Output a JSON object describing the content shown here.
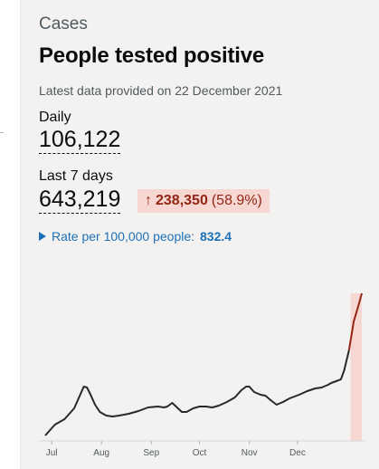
{
  "card": {
    "category": "Cases",
    "title": "People tested positive",
    "latest_data": "Latest data provided on 22 December 2021"
  },
  "daily": {
    "label": "Daily",
    "value": "106,122"
  },
  "last7": {
    "label": "Last 7 days",
    "value": "643,219",
    "change_arrow": "↑",
    "change_value": "238,350",
    "change_percent": "(58.9%)"
  },
  "rate": {
    "label": "Rate per 100,000 people:",
    "value": "832.4"
  },
  "colors": {
    "line": "#272828",
    "line_recent": "#942514",
    "recent_fill": "#f6d7d2",
    "link": "#1d70b8"
  },
  "chart_data": {
    "type": "line",
    "x_ticks": [
      "Jul",
      "Aug",
      "Sep",
      "Oct",
      "Nov",
      "Dec"
    ],
    "series": [
      {
        "values": [
          [
            0,
            6
          ],
          [
            6,
            18
          ],
          [
            12,
            24
          ],
          [
            18,
            36
          ],
          [
            22,
            52
          ],
          [
            24,
            60
          ],
          [
            26,
            59
          ],
          [
            28,
            52
          ],
          [
            31,
            40
          ],
          [
            34,
            32
          ],
          [
            38,
            28
          ],
          [
            42,
            27
          ],
          [
            46,
            28
          ],
          [
            52,
            30
          ],
          [
            58,
            33
          ],
          [
            64,
            37
          ],
          [
            70,
            38
          ],
          [
            74,
            37
          ],
          [
            76,
            38
          ],
          [
            79,
            42
          ],
          [
            82,
            37
          ],
          [
            85,
            32
          ],
          [
            88,
            32
          ],
          [
            92,
            36
          ],
          [
            96,
            38
          ],
          [
            100,
            38
          ],
          [
            104,
            37
          ],
          [
            108,
            39
          ],
          [
            113,
            43
          ],
          [
            118,
            48
          ],
          [
            122,
            56
          ],
          [
            125,
            60
          ],
          [
            127,
            60
          ],
          [
            130,
            54
          ],
          [
            134,
            51
          ],
          [
            137,
            50
          ],
          [
            141,
            44
          ],
          [
            144,
            40
          ],
          [
            148,
            43
          ],
          [
            152,
            47
          ],
          [
            158,
            51
          ],
          [
            163,
            55
          ],
          [
            168,
            58
          ],
          [
            172,
            59
          ],
          [
            176,
            62
          ],
          [
            178,
            64
          ],
          [
            181,
            66
          ],
          [
            184,
            68
          ],
          [
            186,
            78
          ],
          [
            189,
            100
          ],
          [
            192,
            132
          ],
          [
            195,
            150
          ],
          [
            197,
            163
          ]
        ]
      }
    ],
    "recent_period_days": 7,
    "grid": false
  }
}
